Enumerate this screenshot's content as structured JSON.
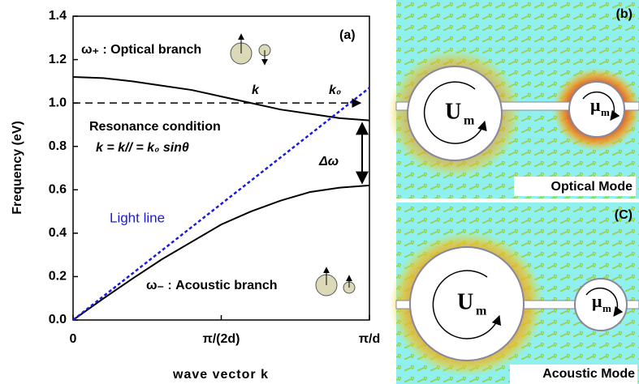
{
  "chart_data": {
    "type": "line",
    "ylabel": "Frequency  (eV)",
    "xlabel": "wave vector k",
    "panel_label": "(a)",
    "xlim": [
      0,
      1
    ],
    "ylim": [
      0,
      1.4
    ],
    "xticks": [
      {
        "value": 0,
        "label": "0"
      },
      {
        "value": 0.5,
        "label": "π/(2d)"
      },
      {
        "value": 1,
        "label": "π/d"
      }
    ],
    "yticks": [
      {
        "value": 0,
        "label": "0.0"
      },
      0.2,
      0.4,
      0.6,
      0.8,
      {
        "value": 1,
        "label": "1.0"
      },
      1.2,
      1.4
    ],
    "x": [
      0,
      0.1,
      0.2,
      0.3,
      0.4,
      0.5,
      0.6,
      0.7,
      0.8,
      0.9,
      1
    ],
    "series": [
      {
        "name": "ω₊ : Optical branch",
        "color": "#000000",
        "values": [
          1.12,
          1.115,
          1.1,
          1.08,
          1.06,
          1.03,
          1.0,
          0.97,
          0.95,
          0.93,
          0.92
        ]
      },
      {
        "name": "ω₋ : Acoustic branch",
        "color": "#000000",
        "values": [
          0,
          0.097,
          0.19,
          0.28,
          0.36,
          0.44,
          0.5,
          0.55,
          0.59,
          0.61,
          0.62
        ]
      },
      {
        "name": "Light line",
        "color": "#1a1ae6",
        "dashed": true,
        "x": [
          0,
          1
        ],
        "values": [
          0,
          1.07
        ]
      }
    ],
    "reference_line": {
      "x": [
        0,
        0.97
      ],
      "y": [
        1,
        1
      ]
    },
    "annotations": {
      "k": "k",
      "k0": "k₀",
      "resonance": "Resonance condition",
      "equation": "k = k// = k₀ sinθ",
      "delta": "Δω"
    }
  },
  "panels": [
    {
      "label": "(b)",
      "caption": "Optical Mode",
      "big": "U",
      "big_sub": "m",
      "small": "μ",
      "small_sub": "m"
    },
    {
      "label": "(C)",
      "caption": "Acoustic Mode",
      "big": "U",
      "big_sub": "m",
      "small": "μ",
      "small_sub": "m"
    }
  ]
}
